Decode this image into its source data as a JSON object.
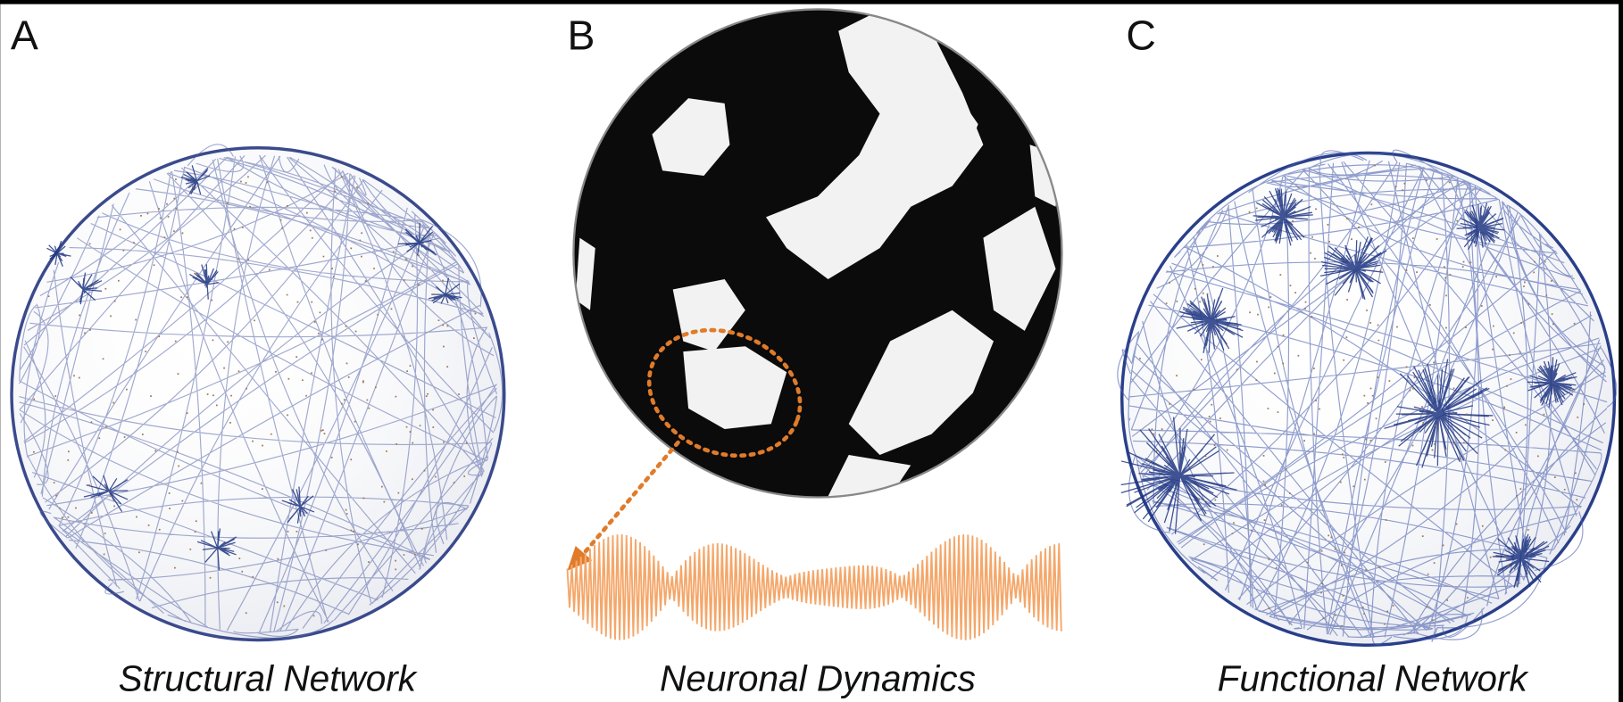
{
  "panels": [
    {
      "label": "A",
      "caption": "Structural Network"
    },
    {
      "label": "B",
      "caption": "Neuronal Dynamics"
    },
    {
      "label": "C",
      "caption": "Functional Network"
    }
  ]
}
